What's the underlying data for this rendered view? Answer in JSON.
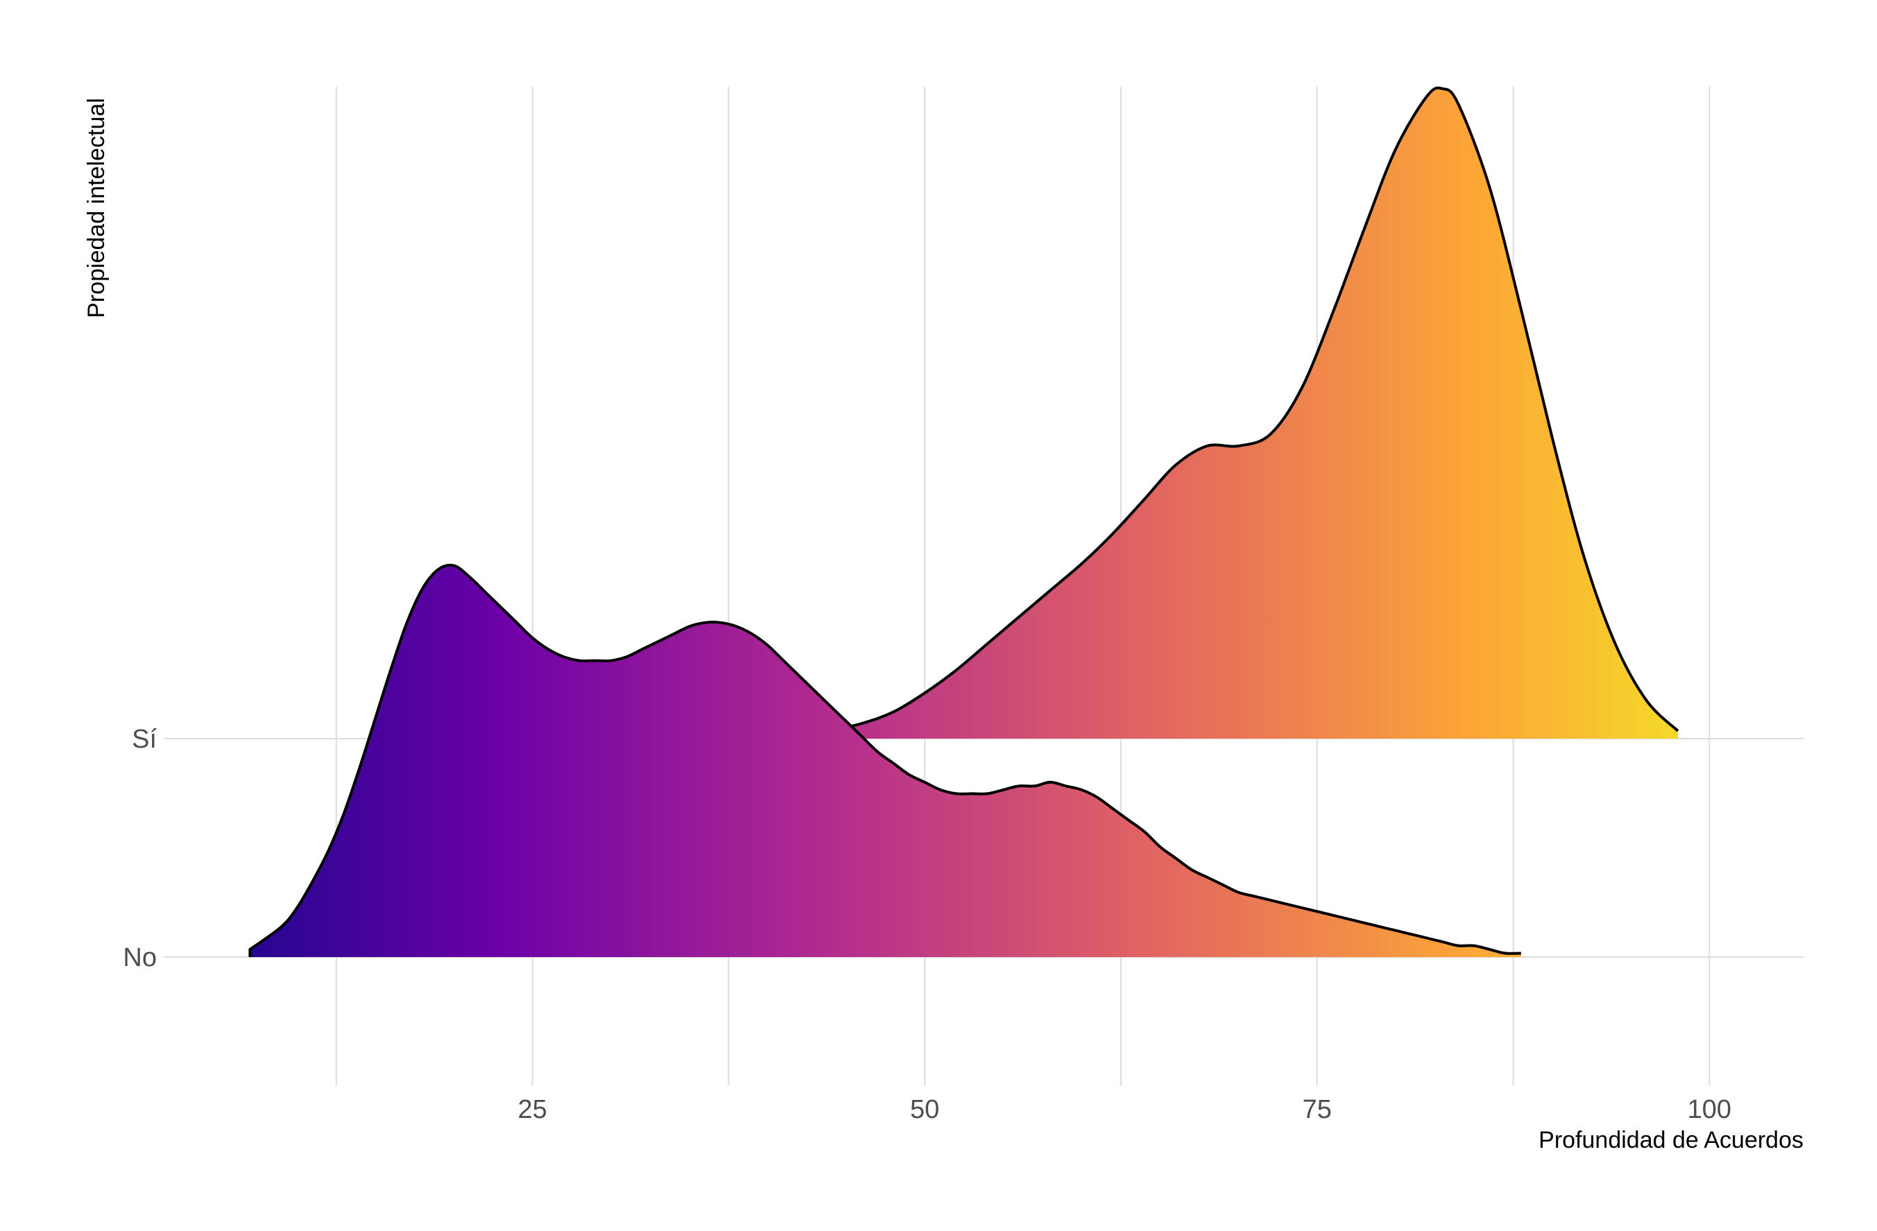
{
  "chart_data": {
    "type": "ridgeline",
    "title": "",
    "xlabel": "Profundidad de Acuerdos",
    "ylabel": "Propiedad intelectual",
    "xlim": [
      1.5,
      106
    ],
    "x_ticks": [
      25,
      50,
      75,
      100
    ],
    "x_minor_gridlines": [
      12.5,
      37.5,
      62.5,
      87.5
    ],
    "grid": true,
    "fill": "horizontal gradient by x (plasma palette)",
    "palette": [
      "#0d0887",
      "#6a00a8",
      "#b12a90",
      "#e16462",
      "#fca636",
      "#f0f921"
    ],
    "categories": [
      "No",
      "Sí"
    ],
    "series": [
      {
        "category": "No",
        "points": [
          [
            7,
            0.02
          ],
          [
            9,
            0.08
          ],
          [
            10,
            0.13
          ],
          [
            11,
            0.2
          ],
          [
            12,
            0.28
          ],
          [
            13,
            0.38
          ],
          [
            14,
            0.5
          ],
          [
            15,
            0.63
          ],
          [
            16,
            0.76
          ],
          [
            17,
            0.88
          ],
          [
            18,
            0.97
          ],
          [
            19,
            1.02
          ],
          [
            20,
            1.03
          ],
          [
            21,
            1.0
          ],
          [
            22,
            0.96
          ],
          [
            23,
            0.92
          ],
          [
            24,
            0.88
          ],
          [
            25,
            0.84
          ],
          [
            26,
            0.81
          ],
          [
            27,
            0.79
          ],
          [
            28,
            0.78
          ],
          [
            29,
            0.78
          ],
          [
            30,
            0.78
          ],
          [
            31,
            0.79
          ],
          [
            32,
            0.81
          ],
          [
            33,
            0.83
          ],
          [
            34,
            0.85
          ],
          [
            35,
            0.87
          ],
          [
            36,
            0.88
          ],
          [
            37,
            0.88
          ],
          [
            38,
            0.87
          ],
          [
            39,
            0.85
          ],
          [
            40,
            0.82
          ],
          [
            41,
            0.78
          ],
          [
            42,
            0.74
          ],
          [
            43,
            0.7
          ],
          [
            44,
            0.66
          ],
          [
            45,
            0.62
          ],
          [
            46,
            0.58
          ],
          [
            47,
            0.54
          ],
          [
            48,
            0.51
          ],
          [
            49,
            0.48
          ],
          [
            50,
            0.46
          ],
          [
            51,
            0.44
          ],
          [
            52,
            0.43
          ],
          [
            53,
            0.43
          ],
          [
            54,
            0.43
          ],
          [
            55,
            0.44
          ],
          [
            56,
            0.45
          ],
          [
            57,
            0.45
          ],
          [
            58,
            0.46
          ],
          [
            59,
            0.45
          ],
          [
            60,
            0.44
          ],
          [
            61,
            0.42
          ],
          [
            62,
            0.39
          ],
          [
            63,
            0.36
          ],
          [
            64,
            0.33
          ],
          [
            65,
            0.29
          ],
          [
            66,
            0.26
          ],
          [
            67,
            0.23
          ],
          [
            68,
            0.21
          ],
          [
            69,
            0.19
          ],
          [
            70,
            0.17
          ],
          [
            71,
            0.16
          ],
          [
            72,
            0.15
          ],
          [
            73,
            0.14
          ],
          [
            74,
            0.13
          ],
          [
            75,
            0.12
          ],
          [
            76,
            0.11
          ],
          [
            77,
            0.1
          ],
          [
            78,
            0.09
          ],
          [
            79,
            0.08
          ],
          [
            80,
            0.07
          ],
          [
            81,
            0.06
          ],
          [
            82,
            0.05
          ],
          [
            83,
            0.04
          ],
          [
            84,
            0.03
          ],
          [
            85,
            0.03
          ],
          [
            86,
            0.02
          ],
          [
            87,
            0.01
          ],
          [
            88,
            0.01
          ]
        ]
      },
      {
        "category": "Sí",
        "points": [
          [
            44,
            0.02
          ],
          [
            46,
            0.04
          ],
          [
            48,
            0.07
          ],
          [
            50,
            0.12
          ],
          [
            52,
            0.18
          ],
          [
            54,
            0.25
          ],
          [
            56,
            0.32
          ],
          [
            58,
            0.39
          ],
          [
            60,
            0.46
          ],
          [
            62,
            0.54
          ],
          [
            64,
            0.63
          ],
          [
            66,
            0.72
          ],
          [
            68,
            0.77
          ],
          [
            70,
            0.77
          ],
          [
            72,
            0.8
          ],
          [
            74,
            0.92
          ],
          [
            76,
            1.12
          ],
          [
            78,
            1.34
          ],
          [
            80,
            1.55
          ],
          [
            82,
            1.69
          ],
          [
            83,
            1.71
          ],
          [
            84,
            1.67
          ],
          [
            86,
            1.45
          ],
          [
            88,
            1.13
          ],
          [
            90,
            0.79
          ],
          [
            92,
            0.48
          ],
          [
            94,
            0.25
          ],
          [
            96,
            0.1
          ],
          [
            98,
            0.02
          ]
        ]
      }
    ]
  }
}
